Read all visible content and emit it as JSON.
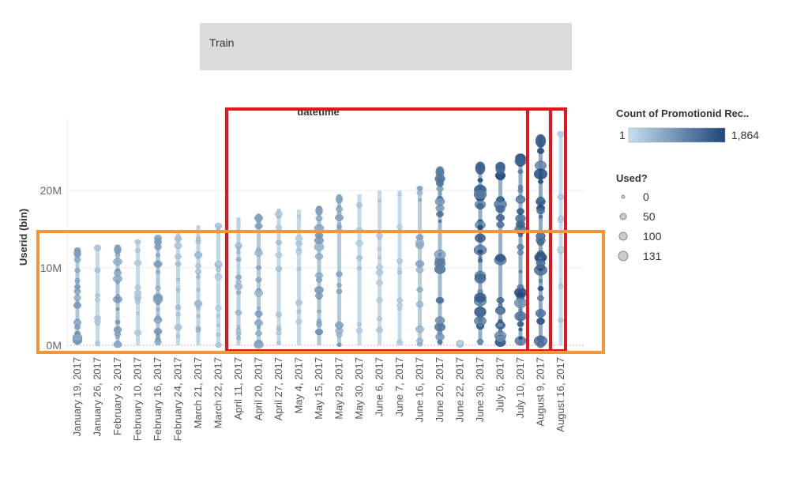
{
  "filter": {
    "label": "Train"
  },
  "legend_color": {
    "title": "Count of Promotionid Rec..",
    "min_label": "1",
    "max_label": "1,864"
  },
  "legend_size": {
    "title": "Used?",
    "items": [
      "0",
      "50",
      "100",
      "131"
    ]
  },
  "chart_data": {
    "type": "scatter",
    "title": "datetime",
    "ylabel": "Userid (bin)",
    "xlabel": "",
    "y_ticks": [
      "20M",
      "10M",
      "0M"
    ],
    "ylim": [
      0,
      28
    ],
    "grid": true,
    "categories": [
      "January 19, 2017",
      "January 26, 2017",
      "February 3, 2017",
      "February 10, 2017",
      "February 16, 2017",
      "February 24, 2017",
      "March 21, 2017",
      "March 22, 2017",
      "April 11, 2017",
      "April 20, 2017",
      "April 27, 2017",
      "May 4, 2017",
      "May 15, 2017",
      "May 29, 2017",
      "May 30, 2017",
      "June 6, 2017",
      "June 7, 2017",
      "June 16, 2017",
      "June 20, 2017",
      "June 22, 2017",
      "June 30, 2017",
      "July 5, 2017",
      "July 10, 2017",
      "August 9, 2017",
      "August 16, 2017"
    ],
    "max_userid_millions": [
      12.5,
      13,
      13,
      13.5,
      14,
      14.5,
      15.5,
      15.5,
      16.5,
      17,
      17.5,
      17.5,
      18,
      19.5,
      19.5,
      20,
      20,
      20.5,
      23,
      0.3,
      23.5,
      23.5,
      24.5,
      27,
      27.5
    ],
    "intensity": [
      0.45,
      0.15,
      0.45,
      0.15,
      0.45,
      0.2,
      0.25,
      0.2,
      0.3,
      0.4,
      0.2,
      0.15,
      0.45,
      0.4,
      0.15,
      0.15,
      0.15,
      0.35,
      0.65,
      0.15,
      0.85,
      0.8,
      0.85,
      0.9,
      0.15
    ],
    "legend_color_range": [
      1,
      1864
    ],
    "legend_size_values": [
      0,
      50,
      100,
      131
    ]
  }
}
